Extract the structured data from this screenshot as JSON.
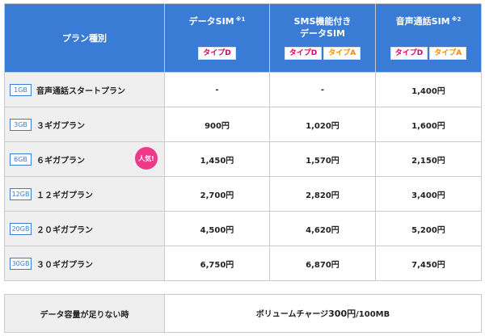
{
  "header": {
    "plan_type": "プラン種別",
    "columns": [
      {
        "title_line1": "データSIM",
        "title_line2": "",
        "note": "※1",
        "tags": [
          "タイプD"
        ]
      },
      {
        "title_line1": "SMS機能付き",
        "title_line2": "データSIM",
        "note": "",
        "tags": [
          "タイプD",
          "タイプA"
        ]
      },
      {
        "title_line1": "音声通話SIM",
        "title_line2": "",
        "note": "※2",
        "tags": [
          "タイプD",
          "タイプA"
        ]
      }
    ]
  },
  "rows": [
    {
      "gb": "1GB",
      "name": "音声通話スタートプラン",
      "popular": "",
      "prices": [
        "-",
        "-",
        "1,400円"
      ]
    },
    {
      "gb": "3GB",
      "name": "３ギガプラン",
      "popular": "",
      "prices": [
        "900円",
        "1,020円",
        "1,600円"
      ]
    },
    {
      "gb": "6GB",
      "name": "６ギガプラン",
      "popular": "人気!",
      "prices": [
        "1,450円",
        "1,570円",
        "2,150円"
      ]
    },
    {
      "gb": "12GB",
      "name": "１２ギガプラン",
      "popular": "",
      "prices": [
        "2,700円",
        "2,820円",
        "3,400円"
      ]
    },
    {
      "gb": "20GB",
      "name": "２０ギガプラン",
      "popular": "",
      "prices": [
        "4,500円",
        "4,620円",
        "5,200円"
      ]
    },
    {
      "gb": "30GB",
      "name": "３０ギガプラン",
      "popular": "",
      "prices": [
        "6,750円",
        "6,870円",
        "7,450円"
      ]
    }
  ],
  "extra": {
    "label": "データ容量が足りない時",
    "value_prefix": "ボリュームチャージ",
    "value_amount": "300円",
    "value_suffix": "/100MB"
  },
  "colors": {
    "header": "#3a7bd5",
    "type_d": "#d6006a",
    "type_a": "#f08a00",
    "popular": "#ef3a8a"
  }
}
